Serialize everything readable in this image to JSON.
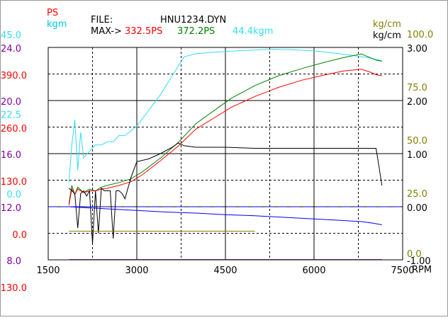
{
  "header": {
    "file_label": "FILE:",
    "file_name": "HNU1234.DYN",
    "max_label": "MAX->",
    "max_ps": "332.5PS",
    "max_ps2": "372.2PS",
    "max_kgm": "44.4kgm"
  },
  "axis_titles": {
    "ps": "PS",
    "kgm": "kgm",
    "kgcm_a": "kg/cm",
    "kgcm_b": "kg/cm",
    "rpm": "RPM"
  },
  "colors": {
    "red": "#ff0000",
    "green": "#008000",
    "cyan": "#33ddee",
    "black": "#000000",
    "blue": "#0000ff",
    "olive": "#808000",
    "purple": "#8000a0"
  },
  "chart_data": {
    "type": "line",
    "xlabel": "RPM",
    "xlim": [
      1500,
      7500
    ],
    "x_ticks": [
      "1500",
      "3000",
      "4500",
      "6000",
      "7500"
    ],
    "left_ticks_purple": [
      "24.0",
      "20.0",
      "16.0",
      "12.0",
      "8.0"
    ],
    "left_ticks_red": [
      "390.0",
      "260.0",
      "130.0",
      "0.0",
      "-130.0"
    ],
    "left_ticks_cyan": [
      "45.0",
      "22.5",
      "0.0"
    ],
    "right_ticks_black": [
      "3.00",
      "2.00",
      "1.00",
      "0.00",
      "-1.00"
    ],
    "right_ticks_olive": [
      "100.0",
      "75.0",
      "50.0",
      "25.0",
      "0.0"
    ],
    "series": [
      {
        "color": "cyan",
        "scale": "kgm",
        "ylim": [
          -22.5,
          45
        ],
        "x": [
          1850,
          1900,
          1950,
          2000,
          2050,
          2100,
          2200,
          2300,
          2400,
          2500,
          2600,
          2700,
          2800,
          3000,
          3200,
          3400,
          3600,
          3800,
          4000,
          4300,
          4600,
          5000,
          5300,
          5600,
          6000,
          6300,
          6600,
          6900,
          7100,
          7150
        ],
        "y": [
          2,
          14,
          22,
          6,
          18,
          10,
          12,
          14,
          14,
          15,
          15,
          17,
          17,
          20,
          25,
          30,
          36,
          42,
          43,
          43.5,
          43.8,
          44.2,
          44.4,
          44.3,
          43.9,
          43.3,
          42.6,
          41.8,
          41,
          40.8
        ]
      },
      {
        "color": "green",
        "scale": "ps",
        "ylim": [
          -195,
          390
        ],
        "x": [
          1850,
          1900,
          1950,
          2000,
          2100,
          2200,
          2300,
          2400,
          2500,
          2700,
          2900,
          3100,
          3400,
          3700,
          4000,
          4300,
          4600,
          5000,
          5400,
          5800,
          6200,
          6500,
          6800,
          6950,
          7050,
          7150
        ],
        "y": [
          -40,
          10,
          -15,
          5,
          -10,
          0,
          -5,
          5,
          10,
          18,
          28,
          48,
          85,
          128,
          180,
          215,
          250,
          285,
          312,
          332,
          350,
          362,
          372,
          362,
          355,
          352
        ]
      },
      {
        "color": "red",
        "scale": "ps",
        "ylim": [
          -195,
          390
        ],
        "x": [
          1850,
          1900,
          1950,
          2000,
          2100,
          2200,
          2300,
          2400,
          2500,
          2700,
          2900,
          3100,
          3400,
          3700,
          4000,
          4300,
          4600,
          5000,
          5400,
          5800,
          6200,
          6500,
          6800,
          6950,
          7050,
          7150
        ],
        "y": [
          -45,
          0,
          -15,
          0,
          -10,
          -5,
          -5,
          0,
          2,
          10,
          20,
          40,
          78,
          118,
          165,
          195,
          225,
          255,
          280,
          300,
          315,
          325,
          330,
          322,
          315,
          312
        ]
      },
      {
        "color": "black",
        "scale": "kgcm",
        "ylim": [
          -1,
          3
        ],
        "x": [
          1850,
          1900,
          1950,
          2000,
          2050,
          2100,
          2150,
          2200,
          2250,
          2300,
          2350,
          2400,
          2450,
          2500,
          2550,
          2600,
          2650,
          2700,
          2750,
          2800,
          2900,
          3000,
          3200,
          3400,
          3600,
          3700,
          3800,
          4000,
          4500,
          5000,
          5500,
          6000,
          6500,
          6900,
          7050,
          7100,
          7150
        ],
        "y": [
          0.35,
          0.3,
          0.25,
          -0.4,
          0.25,
          0.3,
          0.2,
          0.3,
          -0.7,
          0.3,
          -0.5,
          0.35,
          0.3,
          0.3,
          0.3,
          -0.6,
          0.3,
          0.3,
          0.25,
          0.15,
          0.55,
          0.85,
          0.9,
          1.0,
          1.12,
          1.2,
          1.15,
          1.12,
          1.12,
          1.1,
          1.1,
          1.1,
          1.1,
          1.1,
          1.1,
          0.75,
          0.4
        ]
      },
      {
        "color": "blue",
        "scale": "kgcm",
        "ylim": [
          -1,
          3
        ],
        "x": [
          1850,
          2500,
          3000,
          3500,
          4000,
          4500,
          5000,
          5500,
          6000,
          6500,
          6800,
          7000,
          7150
        ],
        "y": [
          0.0,
          -0.04,
          -0.07,
          -0.1,
          -0.12,
          -0.15,
          -0.17,
          -0.2,
          -0.23,
          -0.26,
          -0.28,
          -0.31,
          -0.34
        ]
      },
      {
        "color": "olive",
        "scale": "olive",
        "ylim": [
          0,
          100
        ],
        "x": [
          1850,
          5000
        ],
        "y": [
          13.5,
          13.5
        ]
      },
      {
        "color": "purple",
        "scale": "purple",
        "ylim": [
          8,
          24
        ],
        "x": [
          1850,
          7150
        ],
        "y": [
          8.02,
          8.02
        ]
      }
    ]
  }
}
